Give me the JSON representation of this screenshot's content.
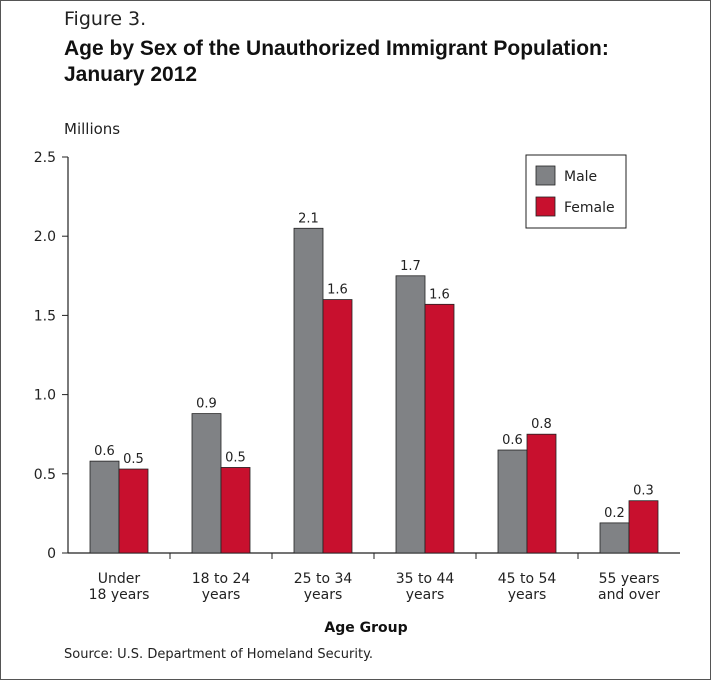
{
  "figure_label": "Figure 3.",
  "title": "Age by Sex of the Unauthorized Immigrant Population: January 2012",
  "source": "Source: U.S. Department of Homeland Security.",
  "chart_data": {
    "type": "bar",
    "title": "Age by Sex of the Unauthorized Immigrant Population: January 2012",
    "ylabel": "Millions",
    "xlabel": "Age Group",
    "ylim": [
      0,
      2.5
    ],
    "yticks": [
      "0",
      "0.5",
      "1.0",
      "1.5",
      "2.0",
      "2.5"
    ],
    "categories": [
      [
        "Under",
        "18 years"
      ],
      [
        "18 to 24",
        "years"
      ],
      [
        "25 to 34",
        "years"
      ],
      [
        "35 to 44",
        "years"
      ],
      [
        "45 to 54",
        "years"
      ],
      [
        "55 years",
        "and over"
      ]
    ],
    "series": [
      {
        "name": "Male",
        "color": "#808285",
        "values": [
          0.58,
          0.88,
          2.05,
          1.75,
          0.65,
          0.19
        ],
        "labels": [
          "0.6",
          "0.9",
          "2.1",
          "1.7",
          "0.6",
          "0.2"
        ]
      },
      {
        "name": "Female",
        "color": "#c8102e",
        "values": [
          0.53,
          0.54,
          1.6,
          1.57,
          0.75,
          0.33
        ],
        "labels": [
          "0.5",
          "0.5",
          "1.6",
          "1.6",
          "0.8",
          "0.3"
        ]
      }
    ],
    "legend_position": "top-right",
    "grid": false
  }
}
